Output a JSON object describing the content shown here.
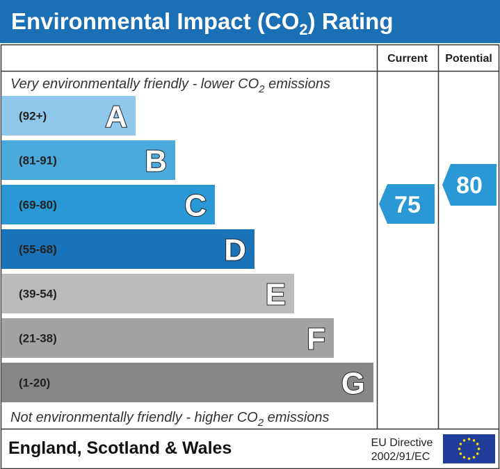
{
  "header": {
    "title": {
      "before": "Environmental Impact (CO",
      "sub": "2",
      "after": ") Rating"
    }
  },
  "columns": [
    "Current",
    "Potential"
  ],
  "top_note": {
    "before": "Very environmentally friendly - lower CO",
    "sub": "2",
    "after": " emissions"
  },
  "bottom_note": {
    "before": "Not environmentally friendly - higher CO",
    "sub": "2",
    "after": " emissions"
  },
  "bands": [
    {
      "range": "(92+)",
      "letter": "A",
      "color": "#8fc8ea"
    },
    {
      "range": "(81-91)",
      "letter": "B",
      "color": "#4ba9dc"
    },
    {
      "range": "(69-80)",
      "letter": "C",
      "color": "#2a98d4"
    },
    {
      "range": "(55-68)",
      "letter": "D",
      "color": "#1a72b8"
    },
    {
      "range": "(39-54)",
      "letter": "E",
      "color": "#bbbbbb"
    },
    {
      "range": "(21-38)",
      "letter": "F",
      "color": "#a3a3a3"
    },
    {
      "range": "(1-20)",
      "letter": "G",
      "color": "#878787"
    }
  ],
  "current": 75,
  "potential": 80,
  "footer": {
    "region": "England, Scotland & Wales",
    "directive": "EU Directive",
    "code": "2002/91/EC"
  }
}
